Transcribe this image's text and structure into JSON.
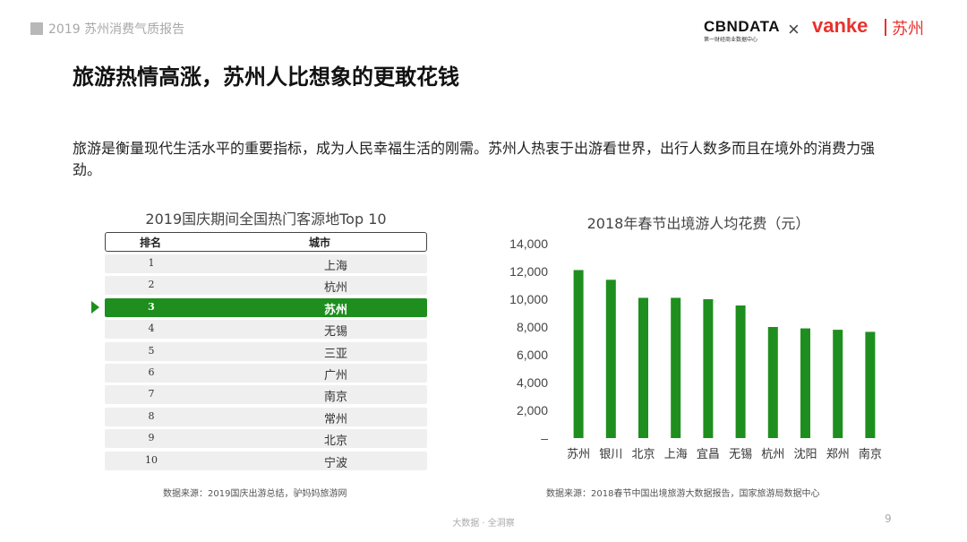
{
  "header": {
    "report_title": "2019 苏州消费气质报告",
    "logo_cbn": "CBNDATA",
    "logo_cbn_sub": "第一财经商业数据中心",
    "logo_x": "×",
    "logo_vanke": "vanke",
    "logo_city": "苏州"
  },
  "title": "旅游热情高涨，苏州人比想象的更敢花钱",
  "intro": "旅游是衡量现代生活水平的重要指标，成为人民幸福生活的刚需。苏州人热衷于出游看世界，出行人数多而且在境外的消费力强劲。",
  "table": {
    "title": "2019国庆期间全国热门客源地Top 10",
    "headers": [
      "排名",
      "城市"
    ],
    "rows": [
      {
        "rank": "1",
        "city": "上海"
      },
      {
        "rank": "2",
        "city": "杭州"
      },
      {
        "rank": "3",
        "city": "苏州"
      },
      {
        "rank": "4",
        "city": "无锡"
      },
      {
        "rank": "5",
        "city": "三亚"
      },
      {
        "rank": "6",
        "city": "广州"
      },
      {
        "rank": "7",
        "city": "南京"
      },
      {
        "rank": "8",
        "city": "常州"
      },
      {
        "rank": "9",
        "city": "北京"
      },
      {
        "rank": "10",
        "city": "宁波"
      }
    ],
    "highlight_index": 2,
    "source": "数据来源：2019国庆出游总结，驴妈妈旅游网"
  },
  "chart_data": {
    "type": "bar",
    "title": "2018年春节出境游人均花费（元）",
    "categories": [
      "苏州",
      "银川",
      "北京",
      "上海",
      "宜昌",
      "无锡",
      "杭州",
      "沈阳",
      "郑州",
      "南京"
    ],
    "values": [
      12100,
      11400,
      10100,
      10100,
      10000,
      9550,
      8000,
      7900,
      7800,
      7650
    ],
    "ylim": [
      0,
      14000
    ],
    "yticks": [
      "–",
      "2,000",
      "4,000",
      "6,000",
      "8,000",
      "10,000",
      "12,000",
      "14,000"
    ],
    "ytick_values": [
      0,
      2000,
      4000,
      6000,
      8000,
      10000,
      12000,
      14000
    ],
    "grid": false,
    "bar_color": "#1e8f1e",
    "source": "数据来源：2018春节中国出境旅游大数据报告，国家旅游局数据中心"
  },
  "footer": {
    "text": "大数据 · 全洞察",
    "page": "9"
  },
  "colors": {
    "accent_green": "#1e8f1e",
    "brand_red": "#e8322d"
  }
}
